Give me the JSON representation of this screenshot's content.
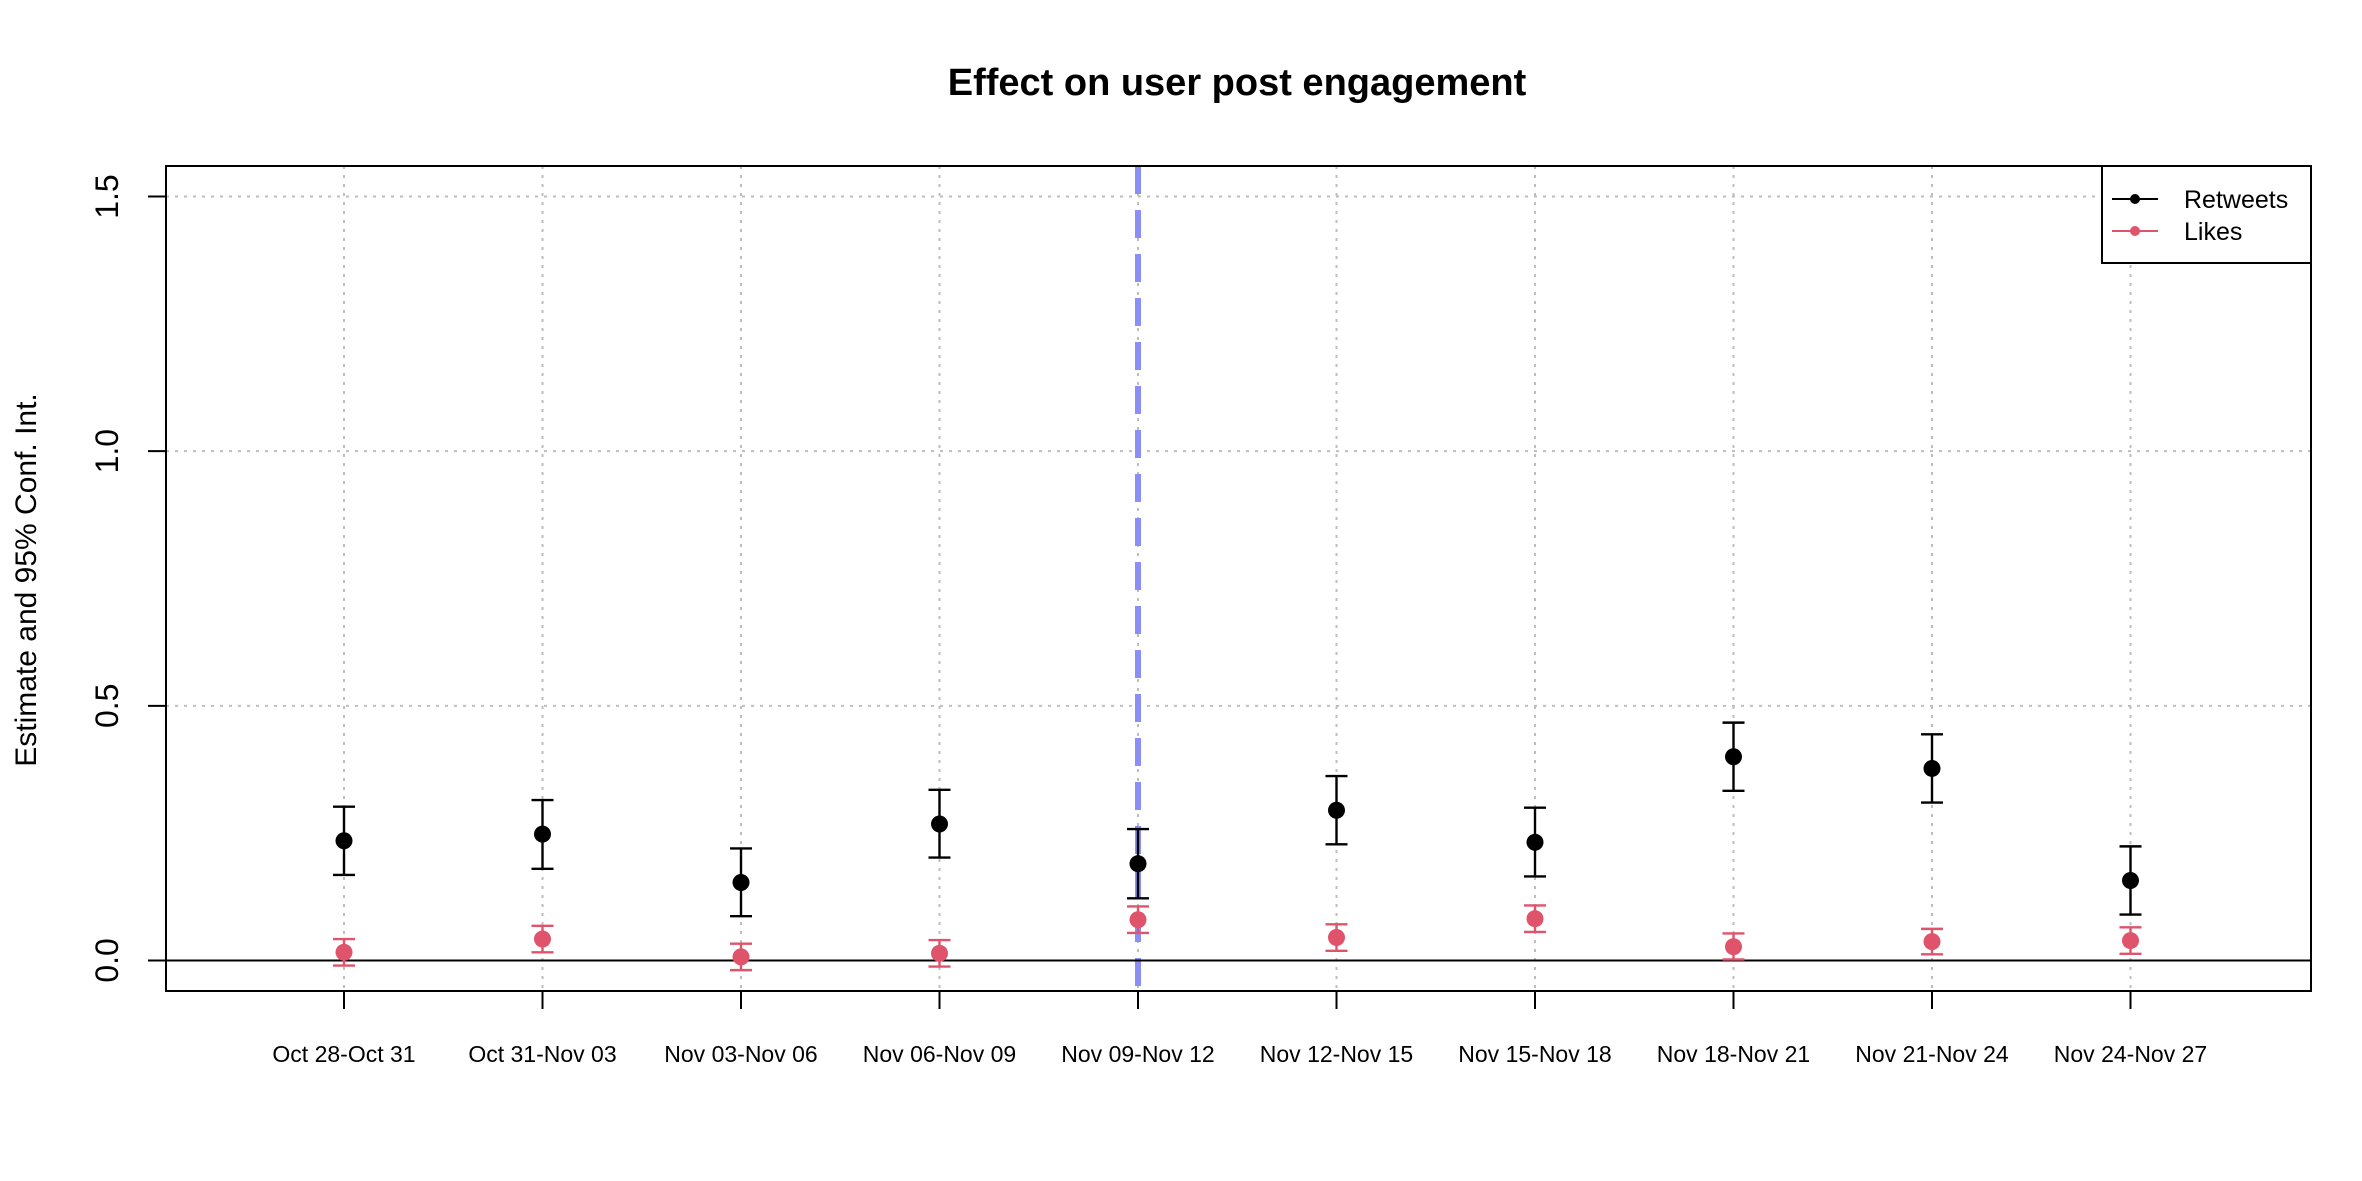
{
  "chart_data": {
    "type": "scatter",
    "title": "Effect on user post engagement",
    "xlabel": "",
    "ylabel": "Estimate and 95% Conf. Int.",
    "categories": [
      "Oct 28-Oct 31",
      "Oct 31-Nov 03",
      "Nov 03-Nov 06",
      "Nov 06-Nov 09",
      "Nov 09-Nov 12",
      "Nov 12-Nov 15",
      "Nov 15-Nov 18",
      "Nov 18-Nov 21",
      "Nov 21-Nov 24",
      "Nov 24-Nov 27"
    ],
    "ylim": [
      -0.06,
      1.56
    ],
    "yticks": [
      0.0,
      0.5,
      1.0,
      1.5
    ],
    "ytick_labels": [
      "0.0",
      "0.5",
      "1.0",
      "1.5"
    ],
    "grid": true,
    "reference_line_y": 0,
    "event_line_category": "Nov 09-Nov 12",
    "legend_position": "top-right",
    "series": [
      {
        "name": "Retweets",
        "color": "#000000",
        "values": [
          0.235,
          0.248,
          0.153,
          0.268,
          0.19,
          0.295,
          0.232,
          0.4,
          0.377,
          0.157
        ],
        "lower": [
          0.168,
          0.18,
          0.087,
          0.202,
          0.122,
          0.228,
          0.165,
          0.333,
          0.31,
          0.09
        ],
        "upper": [
          0.302,
          0.315,
          0.22,
          0.335,
          0.258,
          0.362,
          0.3,
          0.467,
          0.444,
          0.224
        ]
      },
      {
        "name": "Likes",
        "color": "#DF536B",
        "values": [
          0.016,
          0.042,
          0.007,
          0.014,
          0.08,
          0.045,
          0.082,
          0.027,
          0.037,
          0.039
        ],
        "lower": [
          -0.01,
          0.016,
          -0.019,
          -0.012,
          0.054,
          0.019,
          0.056,
          0.002,
          0.012,
          0.013
        ],
        "upper": [
          0.042,
          0.068,
          0.033,
          0.04,
          0.106,
          0.071,
          0.108,
          0.053,
          0.062,
          0.065
        ]
      }
    ],
    "colors": {
      "grid": "#BEBEBE",
      "event_line": "#8A8FF5",
      "axis": "#000000"
    }
  }
}
